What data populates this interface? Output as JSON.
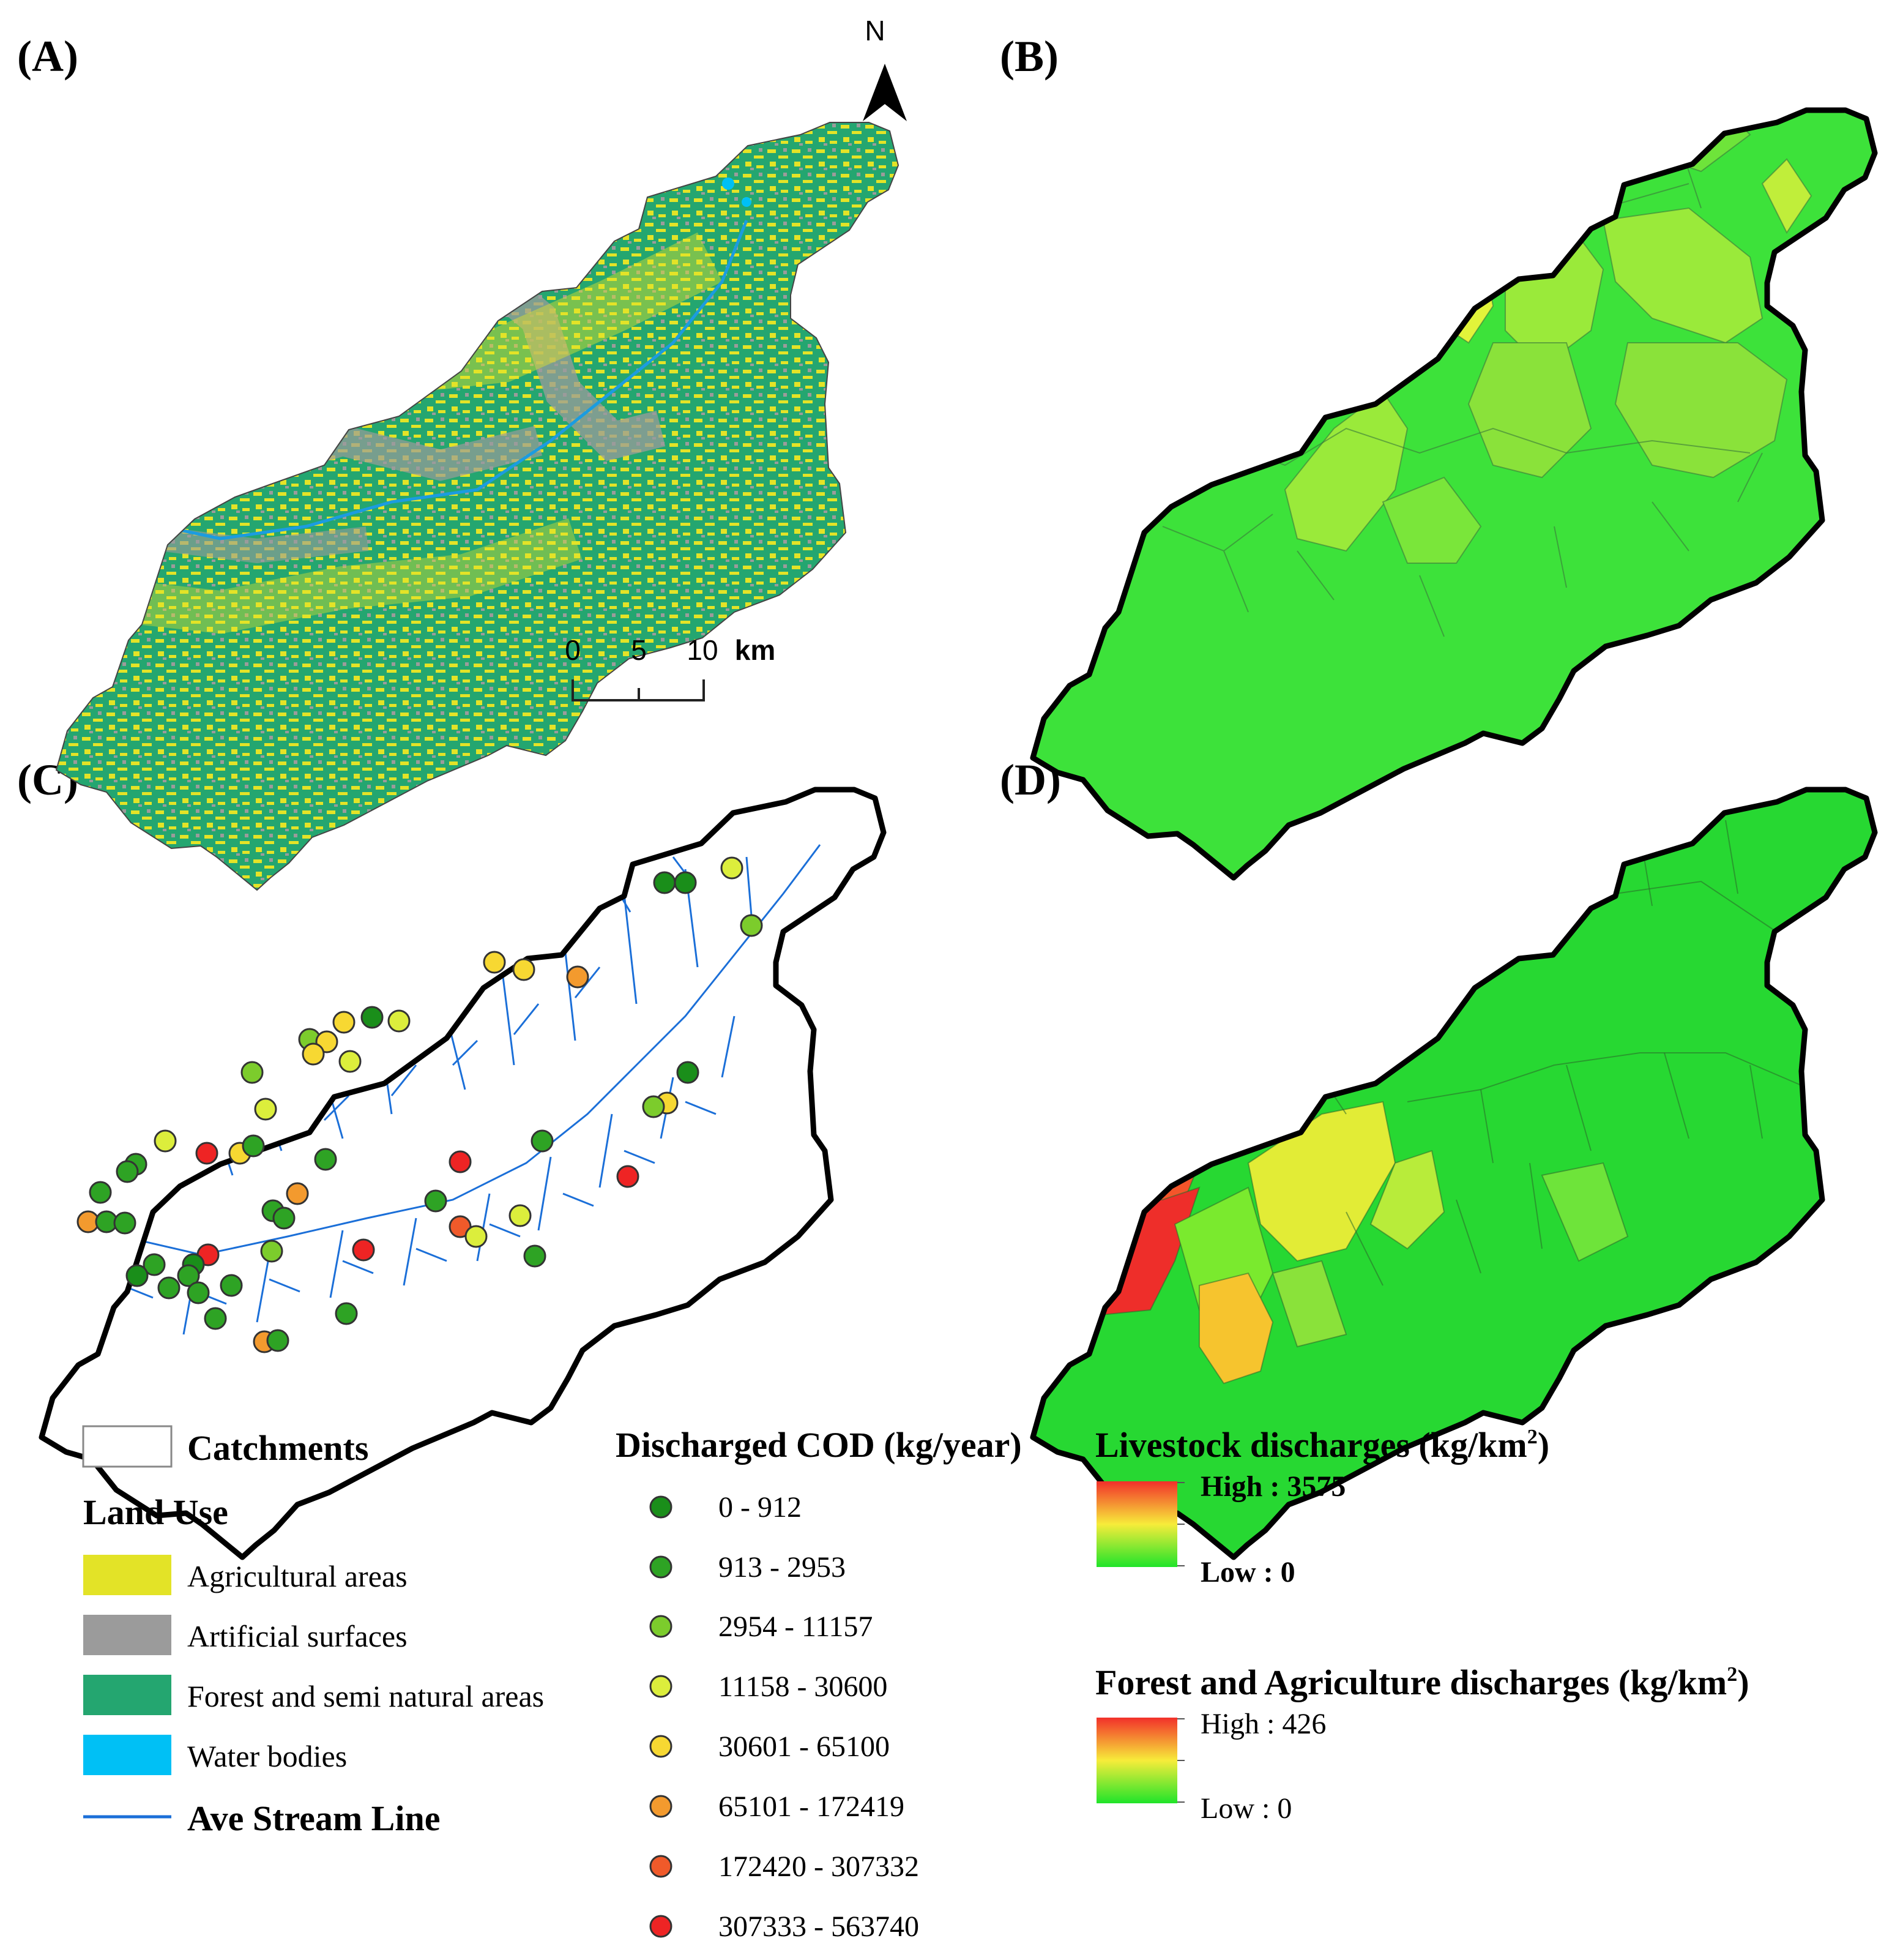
{
  "panels": {
    "a": "(A)",
    "b": "(B)",
    "c": "(C)",
    "d": "(D)"
  },
  "north_arrow": {
    "label": "N",
    "icon": "north-arrow-icon"
  },
  "scale_bar": {
    "ticks": [
      "0",
      "5",
      "10"
    ],
    "unit": "km"
  },
  "legend": {
    "catchments": {
      "label": "Catchments"
    },
    "land_use": {
      "title": "Land Use",
      "items": [
        {
          "label": "Agricultural areas",
          "color": "#e3e327"
        },
        {
          "label": "Artificial surfaces",
          "color": "#9b9b9b"
        },
        {
          "label": "Forest and semi natural areas",
          "color": "#24a670"
        },
        {
          "label": "Water bodies",
          "color": "#00c0f5"
        }
      ]
    },
    "stream": {
      "label": "Ave Stream Line",
      "color": "#1b6fd8"
    },
    "cod": {
      "title": "Discharged COD (kg/year)",
      "classes": [
        {
          "label": "0 - 912",
          "color": "#1a8e1a"
        },
        {
          "label": "913 - 2953",
          "color": "#2ea324"
        },
        {
          "label": "2954 - 11157",
          "color": "#7ccc2c"
        },
        {
          "label": "11158 - 30600",
          "color": "#dcee3c"
        },
        {
          "label": "30601 - 65100",
          "color": "#f7d832"
        },
        {
          "label": "65101 - 172419",
          "color": "#f39a2e"
        },
        {
          "label": "172420 - 307332",
          "color": "#f05a2a"
        },
        {
          "label": "307333 - 563740",
          "color": "#ee2424"
        }
      ]
    },
    "livestock": {
      "title": "Livestock discharges (kg/km",
      "sup": "2",
      "close": ")",
      "high": "High : 3575",
      "low": "Low : 0"
    },
    "forest_agri": {
      "title": "Forest and Agriculture discharges (kg/km",
      "sup": "2",
      "close": ")",
      "high": "High : 426",
      "low": "Low : 0"
    }
  },
  "colors": {
    "ramp_high": "#f2302a",
    "ramp_mid": "#f7ec3a",
    "ramp_low": "#1fe42a",
    "catchment_outline": "#000000"
  }
}
